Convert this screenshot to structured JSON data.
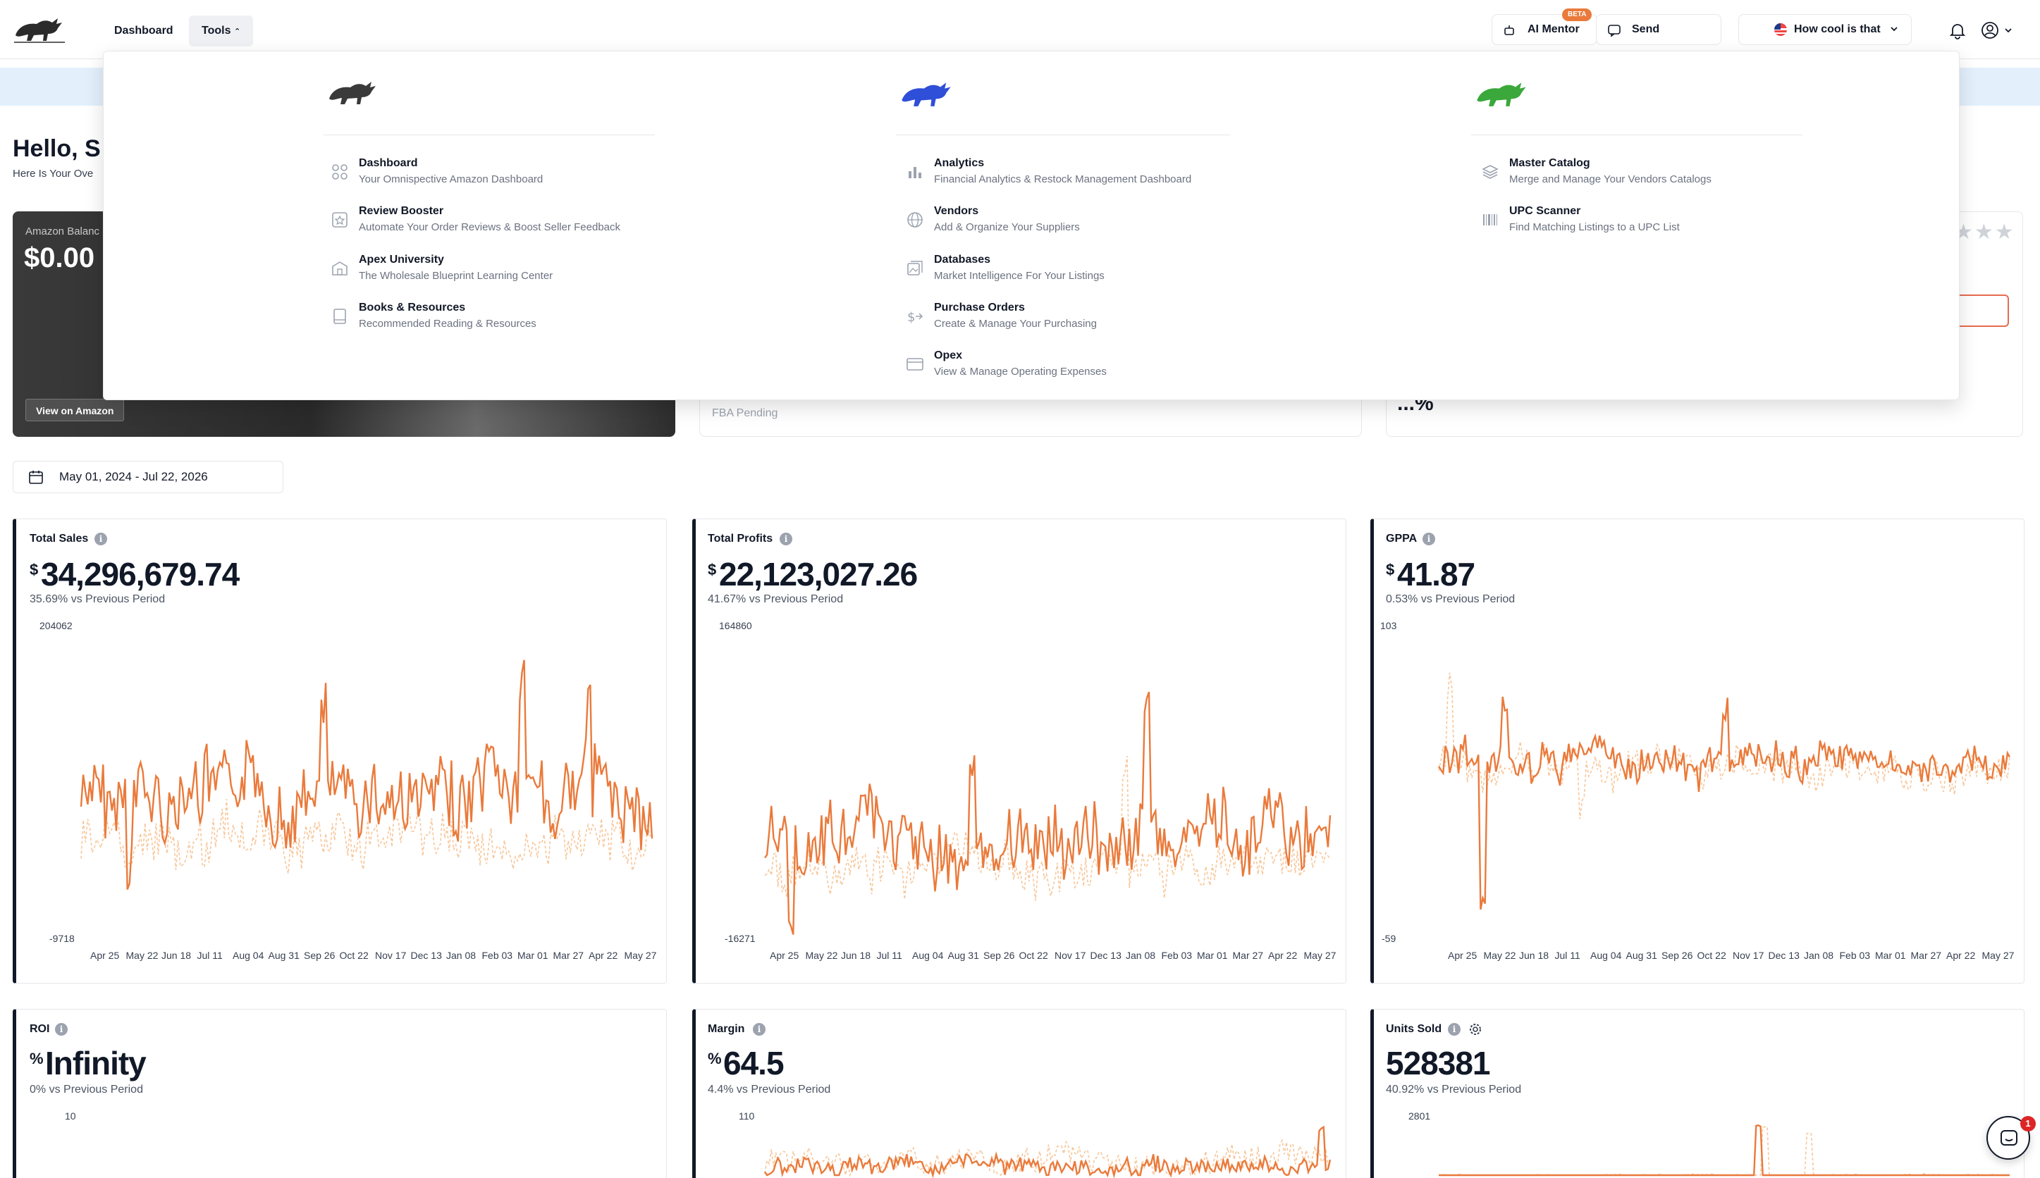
{
  "nav": {
    "dashboard_label": "Dashboard",
    "tools_label": "Tools",
    "ai_mentor_label": "AI Mentor",
    "beta_label": "BETA",
    "feedback_label": "Send feedback",
    "marketplace_label": "How cool is that"
  },
  "page": {
    "hello": "Hello, S",
    "hello_sub": "Here Is Your Ove",
    "balance_label": "Amazon Balanc",
    "balance_value": "$0.00",
    "view_amazon": "View on Amazon",
    "fba_pending": "FBA Pending",
    "pct_value": "...%",
    "stars": "★★★",
    "date_range": "May 01, 2024 - Jul 22, 2026"
  },
  "dropdown": {
    "columns": [
      {
        "items": [
          {
            "title": "Dashboard",
            "desc": "Your Omnispective Amazon Dashboard"
          },
          {
            "title": "Review Booster",
            "desc": "Automate Your Order Reviews & Boost Seller Feedback"
          },
          {
            "title": "Apex University",
            "desc": "The Wholesale Blueprint Learning Center"
          },
          {
            "title": "Books & Resources",
            "desc": "Recommended Reading & Resources"
          }
        ]
      },
      {
        "items": [
          {
            "title": "Analytics",
            "desc": "Financial Analytics & Restock Management Dashboard"
          },
          {
            "title": "Vendors",
            "desc": "Add & Organize Your Suppliers"
          },
          {
            "title": "Databases",
            "desc": "Market Intelligence For Your Listings"
          },
          {
            "title": "Purchase Orders",
            "desc": "Create & Manage Your Purchasing"
          },
          {
            "title": "Opex",
            "desc": "View & Manage Operating Expenses"
          }
        ]
      },
      {
        "items": [
          {
            "title": "Master Catalog",
            "desc": "Merge and Manage Your Vendors Catalogs"
          },
          {
            "title": "UPC Scanner",
            "desc": "Find Matching Listings to a UPC List"
          }
        ]
      }
    ]
  },
  "stats": [
    {
      "title": "Total Sales",
      "prefix": "$",
      "value": "34,296,679.74",
      "compare": "35.69% vs Previous Period",
      "ymax": "204062",
      "ymin": "-9718"
    },
    {
      "title": "Total Profits",
      "prefix": "$",
      "value": "22,123,027.26",
      "compare": "41.67% vs Previous Period",
      "ymax": "164860",
      "ymin": "-16271"
    },
    {
      "title": "GPPA",
      "prefix": "$",
      "value": "41.87",
      "compare": "0.53% vs Previous Period",
      "ymax": "103",
      "ymin": "-59"
    },
    {
      "title": "ROI",
      "prefix": "%",
      "value": "Infinity",
      "compare": "0% vs Previous Period",
      "ymax": "10"
    },
    {
      "title": "Margin",
      "prefix": "%",
      "value": "64.5",
      "compare": "4.4% vs Previous Period",
      "ymax": "110"
    },
    {
      "title": "Units Sold",
      "prefix": "",
      "value": "528381",
      "compare": "40.92% vs Previous Period",
      "ymax": "2801"
    }
  ],
  "x_ticks": [
    "Apr 25",
    "May 22",
    "Jun 18",
    "Jul 11",
    "Aug 04",
    "Aug 31",
    "Sep 26",
    "Oct 22",
    "Nov 17",
    "Dec 13",
    "Jan 08",
    "Feb 03",
    "Mar 01",
    "Mar 27",
    "Apr 22",
    "May 27"
  ],
  "chat_count": "1",
  "colors": {
    "accent": "#ea7a3b",
    "accent_light": "#f7c79b"
  }
}
